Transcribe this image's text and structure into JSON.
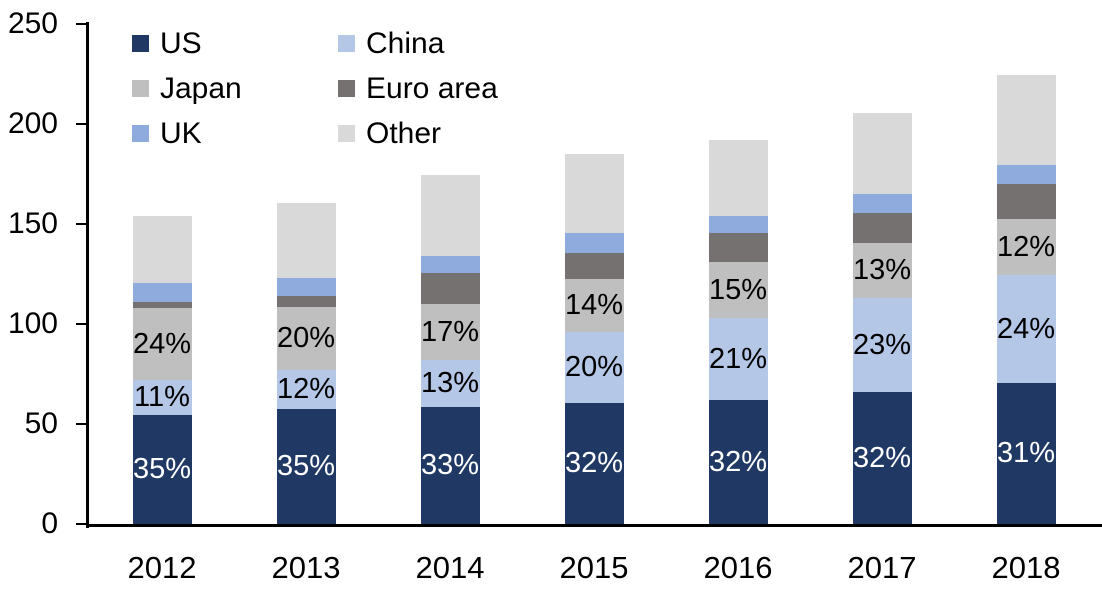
{
  "chart_data": {
    "type": "bar",
    "stacked": true,
    "title": "",
    "xlabel": "",
    "ylabel": "",
    "categories": [
      "2012",
      "2013",
      "2014",
      "2015",
      "2016",
      "2017",
      "2018"
    ],
    "series": [
      {
        "name": "US",
        "color": "#1F3864",
        "values": [
          54.5,
          57.5,
          58.5,
          60.5,
          62,
          66,
          70.5
        ],
        "labels": [
          "35%",
          "35%",
          "33%",
          "32%",
          "32%",
          "32%",
          "31%"
        ],
        "label_color": "#FFFFFF"
      },
      {
        "name": "China",
        "color": "#B4C7E7",
        "values": [
          17.5,
          19.5,
          23.5,
          35.5,
          41,
          47,
          54
        ],
        "labels": [
          "11%",
          "12%",
          "13%",
          "20%",
          "21%",
          "23%",
          "24%"
        ],
        "label_color": "#000000"
      },
      {
        "name": "Japan",
        "color": "#BFBFBF",
        "values": [
          36,
          31.5,
          28,
          26.5,
          28,
          27.5,
          28
        ],
        "labels": [
          "24%",
          "20%",
          "17%",
          "14%",
          "15%",
          "13%",
          "12%"
        ],
        "label_color": "#000000"
      },
      {
        "name": "Euro area",
        "color": "#767171",
        "values": [
          3,
          5.5,
          15.5,
          13,
          14.5,
          15,
          17.5
        ],
        "labels": null,
        "label_color": null
      },
      {
        "name": "UK",
        "color": "#8FAADC",
        "values": [
          9.5,
          9,
          8.5,
          10,
          8.5,
          9.5,
          9.5
        ],
        "labels": null,
        "label_color": null
      },
      {
        "name": "Other",
        "color": "#D9D9D9",
        "values": [
          33.5,
          37.5,
          40.5,
          39.5,
          38,
          40.5,
          45
        ],
        "labels": null,
        "label_color": null
      }
    ],
    "totals_approx": [
      154,
      160.5,
      174.5,
      185,
      192,
      205.5,
      224.5
    ],
    "y_axis": {
      "min": 0,
      "max": 250,
      "tick_step": 50,
      "tick_labels": [
        "0",
        "50",
        "100",
        "150",
        "200",
        "250"
      ]
    },
    "legend": {
      "position": "top-left",
      "columns": 2,
      "row_major_order": [
        "US",
        "China",
        "Japan",
        "Euro area",
        "UK",
        "Other"
      ]
    },
    "grid": false,
    "axis_color": "#000000",
    "background_color": "#FFFFFF"
  }
}
